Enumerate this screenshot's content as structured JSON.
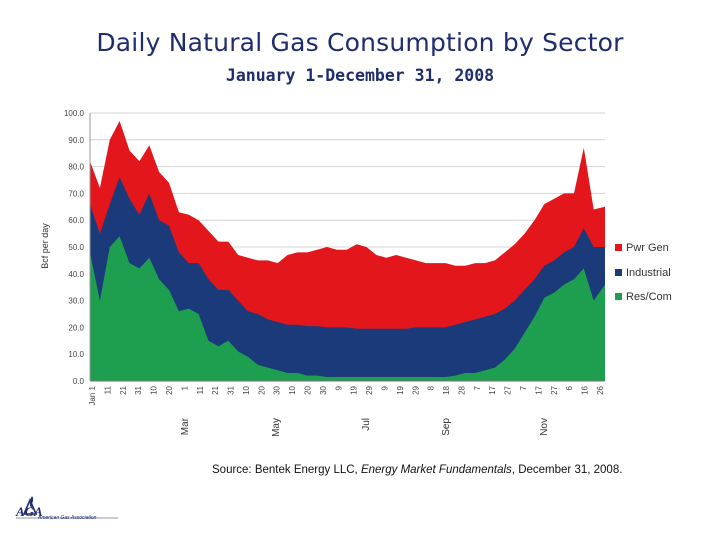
{
  "header": {
    "title": "Daily Natural Gas Consumption by Sector",
    "subtitle": "January 1-December 31, 2008"
  },
  "source": {
    "prefix": "Source: Bentek Energy LLC, ",
    "publication": "Energy Market Fundamentals",
    "suffix": ",  December 31, 2008."
  },
  "logo": {
    "mark": "AGA",
    "name": "American Gas Association"
  },
  "colors": {
    "pwr_gen": "#e3161c",
    "industrial": "#1b3a7a",
    "res_com": "#1e9e4f",
    "grid": "#d4d4d4"
  },
  "chart_data": {
    "type": "area",
    "stacked": true,
    "ylabel": "Bcf per day",
    "ylim": [
      0,
      100
    ],
    "yticks": [
      "0.0",
      "10.0",
      "20.0",
      "30.0",
      "40.0",
      "50.0",
      "60.0",
      "70.0",
      "80.0",
      "90.0",
      "100.0"
    ],
    "xtick_labels": [
      "Jan 1",
      "11",
      "21",
      "31",
      "10",
      "20",
      "1",
      "11",
      "21",
      "31",
      "10",
      "20",
      "30",
      "10",
      "20",
      "30",
      "9",
      "19",
      "29",
      "9",
      "19",
      "29",
      "8",
      "18",
      "28",
      "7",
      "17",
      "27",
      "7",
      "17",
      "27",
      "6",
      "16",
      "26"
    ],
    "month_labels": [
      "Mar",
      "May",
      "Jul",
      "Sep",
      "Nov"
    ],
    "grid": true,
    "legend_position": "right",
    "x": [
      "2008-01-01",
      "2008-01-08",
      "2008-01-15",
      "2008-01-22",
      "2008-01-29",
      "2008-02-05",
      "2008-02-12",
      "2008-02-19",
      "2008-02-26",
      "2008-03-04",
      "2008-03-11",
      "2008-03-18",
      "2008-03-25",
      "2008-04-01",
      "2008-04-08",
      "2008-04-15",
      "2008-04-22",
      "2008-04-29",
      "2008-05-06",
      "2008-05-13",
      "2008-05-20",
      "2008-05-27",
      "2008-06-03",
      "2008-06-10",
      "2008-06-17",
      "2008-06-24",
      "2008-07-01",
      "2008-07-08",
      "2008-07-15",
      "2008-07-22",
      "2008-07-29",
      "2008-08-05",
      "2008-08-12",
      "2008-08-19",
      "2008-08-26",
      "2008-09-02",
      "2008-09-09",
      "2008-09-16",
      "2008-09-23",
      "2008-09-30",
      "2008-10-07",
      "2008-10-14",
      "2008-10-21",
      "2008-10-28",
      "2008-11-04",
      "2008-11-11",
      "2008-11-18",
      "2008-11-25",
      "2008-12-02",
      "2008-12-09",
      "2008-12-16",
      "2008-12-23",
      "2008-12-31"
    ],
    "series": [
      {
        "name": "Res/Com",
        "values": [
          48,
          30,
          50,
          54,
          44,
          42,
          46,
          38,
          34,
          26,
          27,
          25,
          15,
          13,
          15,
          11,
          9,
          6,
          5,
          4,
          3,
          3,
          2,
          2,
          1.5,
          1.5,
          1.5,
          1.5,
          1.5,
          1.5,
          1.5,
          1.5,
          1.5,
          1.5,
          1.5,
          1.5,
          1.5,
          2,
          3,
          3,
          4,
          5,
          8,
          12,
          18,
          24,
          31,
          33,
          36,
          38,
          42,
          30,
          36
        ]
      },
      {
        "name": "Industrial",
        "values": [
          66,
          55,
          66,
          76,
          68,
          62,
          70,
          60,
          58,
          48,
          44,
          44,
          38,
          34,
          34,
          30,
          26,
          25,
          23,
          22,
          21,
          21,
          20.5,
          20.5,
          20,
          20,
          20,
          19.5,
          19.5,
          19.5,
          19.5,
          19.5,
          19.5,
          20,
          20,
          20,
          20,
          21,
          22,
          23,
          24,
          25,
          27,
          30,
          34,
          38,
          43,
          45,
          48,
          50,
          57,
          50,
          50
        ]
      },
      {
        "name": "Pwr Gen",
        "values": [
          82,
          72,
          90,
          97,
          86,
          82,
          88,
          78,
          74,
          63,
          62,
          60,
          56,
          52,
          52,
          47,
          46,
          45,
          45,
          44,
          47,
          48,
          48,
          49,
          50,
          49,
          49,
          51,
          50,
          47,
          46,
          47,
          46,
          45,
          44,
          44,
          44,
          43,
          43,
          44,
          44,
          45,
          48,
          51,
          55,
          60,
          66,
          68,
          70,
          70,
          87,
          64,
          65
        ]
      }
    ]
  }
}
